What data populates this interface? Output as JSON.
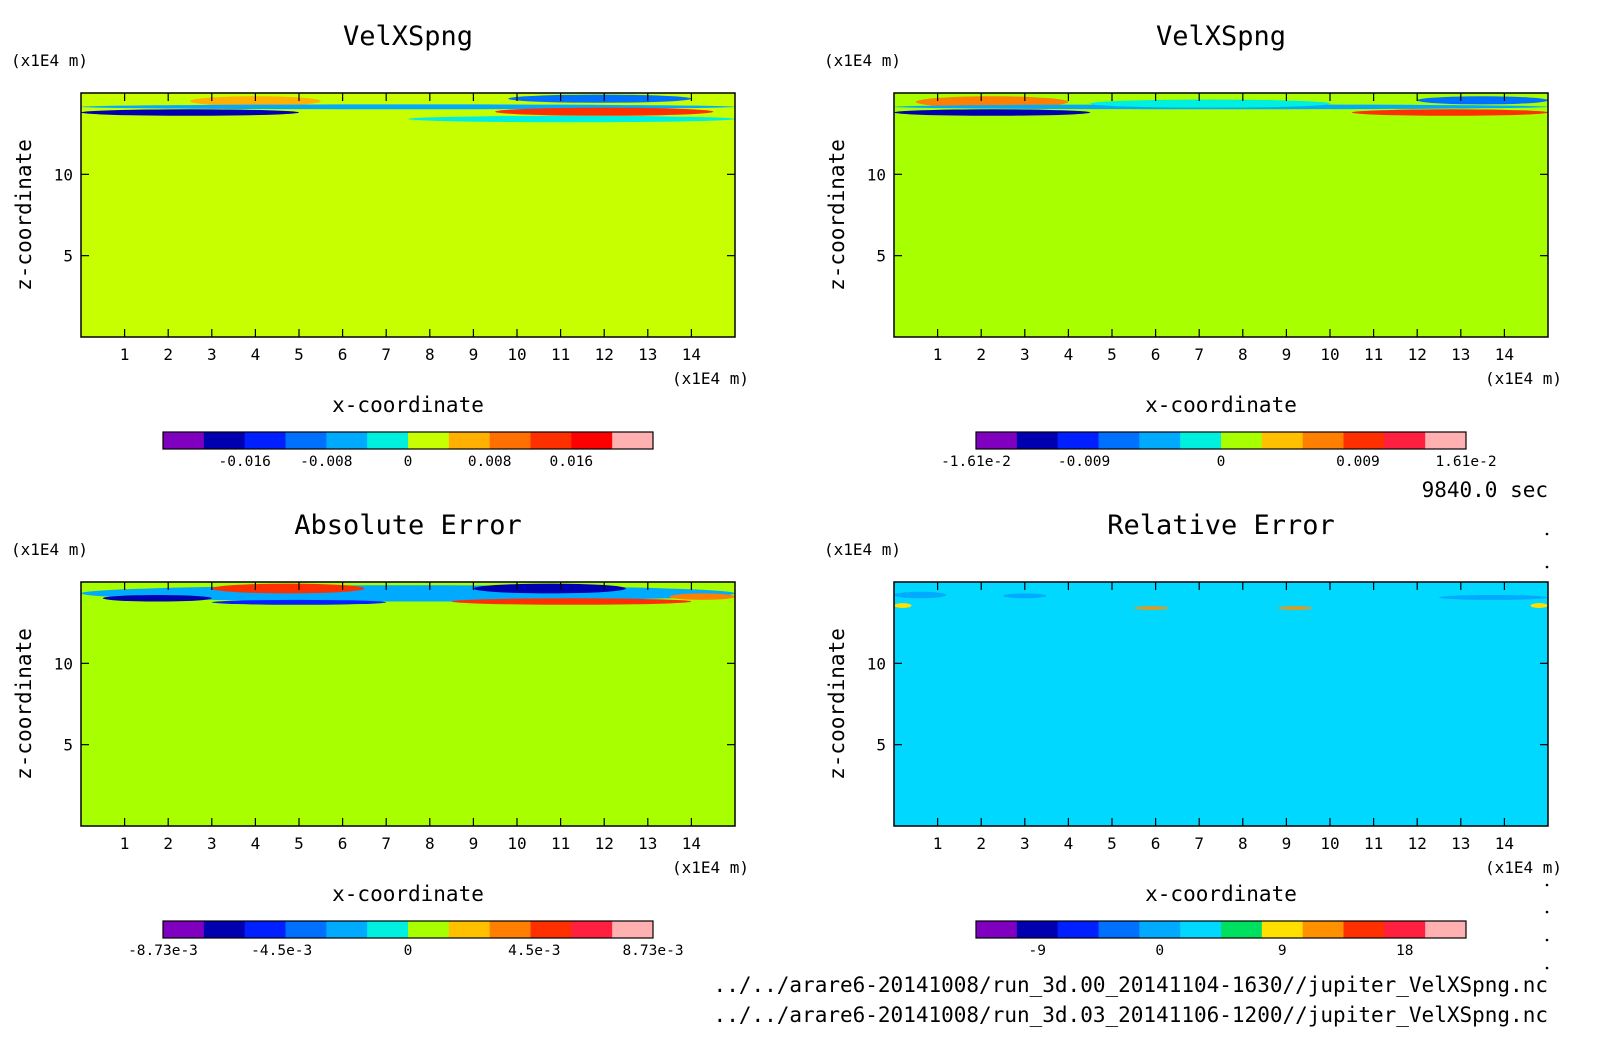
{
  "time_label": "9840.0 sec",
  "file_paths": [
    "../../arare6-20141008/run_3d.00_20141104-1630//jupiter_VelXSpng.nc",
    "../../arare6-20141008/run_3d.03_20141106-1200//jupiter_VelXSpng.nc"
  ],
  "colors": {
    "rainbow": [
      "#7f00bf",
      "#0000b0",
      "#0020ff",
      "#0070ff",
      "#00aaff",
      "#00e5d0",
      "#b0ff00",
      "#ffd700",
      "#ff9a00",
      "#ff5a00",
      "#ff2020",
      "#ff4060",
      "#ffb0b0"
    ],
    "frame": "#000000"
  },
  "chart_data": [
    {
      "type": "heatmap",
      "title": "VelXSpng",
      "xlabel": "x-coordinate",
      "ylabel": "z-coordinate",
      "x_unit": "(x1E4 m)",
      "y_unit": "(x1E4 m)",
      "xlim": [
        0,
        15
      ],
      "ylim": [
        0,
        15
      ],
      "x_ticks": [
        1,
        2,
        3,
        4,
        5,
        6,
        7,
        8,
        9,
        10,
        11,
        12,
        13,
        14
      ],
      "y_ticks": [
        5,
        10
      ],
      "background_value": 0,
      "background_color": "#c8ff00",
      "colorbar": {
        "colors": [
          "#7f00bf",
          "#0000b0",
          "#0020ff",
          "#0070ff",
          "#00aaff",
          "#00f0e0",
          "#c8ff00",
          "#ffb000",
          "#ff7000",
          "#ff3000",
          "#ff0000",
          "#ffb0b0"
        ],
        "labels": [
          "-0.016",
          "-0.008",
          "0",
          "0.008",
          "0.016"
        ],
        "label_values": [
          -0.016,
          -0.008,
          0,
          0.008,
          0.016
        ],
        "range": [
          -0.024,
          0.024
        ]
      },
      "features": [
        {
          "x": [
            2.5,
            5.5
          ],
          "z": [
            14.2,
            14.8
          ],
          "value": 0.008,
          "color": "#ffb000"
        },
        {
          "x": [
            0,
            5.0
          ],
          "z": [
            13.6,
            14.0
          ],
          "value": -0.016,
          "color": "#0000b0"
        },
        {
          "x": [
            0,
            15
          ],
          "z": [
            14.0,
            14.3
          ],
          "value": -0.004,
          "color": "#00aaff"
        },
        {
          "x": [
            9.5,
            14.5
          ],
          "z": [
            13.6,
            14.1
          ],
          "value": 0.016,
          "color": "#ff3000"
        },
        {
          "x": [
            9.8,
            14.0
          ],
          "z": [
            14.4,
            14.9
          ],
          "value": -0.008,
          "color": "#0070ff"
        },
        {
          "x": [
            7.5,
            15
          ],
          "z": [
            13.2,
            13.6
          ],
          "value": -0.004,
          "color": "#00f0e0"
        }
      ]
    },
    {
      "type": "heatmap",
      "title": "VelXSpng",
      "xlabel": "x-coordinate",
      "ylabel": "z-coordinate",
      "x_unit": "(x1E4 m)",
      "y_unit": "(x1E4 m)",
      "xlim": [
        0,
        15
      ],
      "ylim": [
        0,
        15
      ],
      "x_ticks": [
        1,
        2,
        3,
        4,
        5,
        6,
        7,
        8,
        9,
        10,
        11,
        12,
        13,
        14
      ],
      "y_ticks": [
        5,
        10
      ],
      "background_value": 0,
      "background_color": "#a8ff00",
      "colorbar": {
        "colors": [
          "#7f00bf",
          "#0000b0",
          "#0020ff",
          "#0070ff",
          "#00aaff",
          "#00f0e0",
          "#a8ff00",
          "#ffc000",
          "#ff8000",
          "#ff3000",
          "#ff2040",
          "#ffb0b0"
        ],
        "labels": [
          "-1.61e-2",
          "-0.009",
          "0",
          "0.009",
          "1.61e-2"
        ],
        "label_values": [
          -0.0161,
          -0.009,
          0,
          0.009,
          0.0161
        ],
        "range": [
          -0.0161,
          0.0161
        ]
      },
      "features": [
        {
          "x": [
            0.5,
            4.0
          ],
          "z": [
            14.1,
            14.8
          ],
          "value": 0.009,
          "color": "#ff8000"
        },
        {
          "x": [
            0,
            4.5
          ],
          "z": [
            13.6,
            14.0
          ],
          "value": -0.0161,
          "color": "#0000b0"
        },
        {
          "x": [
            0,
            15
          ],
          "z": [
            14.0,
            14.3
          ],
          "value": -0.004,
          "color": "#00aaff"
        },
        {
          "x": [
            10.5,
            15
          ],
          "z": [
            13.6,
            14.0
          ],
          "value": 0.0161,
          "color": "#ff3000"
        },
        {
          "x": [
            12.0,
            15
          ],
          "z": [
            14.3,
            14.8
          ],
          "value": -0.009,
          "color": "#0070ff"
        },
        {
          "x": [
            4.5,
            10.0
          ],
          "z": [
            14.1,
            14.6
          ],
          "value": -0.003,
          "color": "#00f0e0"
        }
      ]
    },
    {
      "type": "heatmap",
      "title": "Absolute Error",
      "xlabel": "x-coordinate",
      "ylabel": "z-coordinate",
      "x_unit": "(x1E4 m)",
      "y_unit": "(x1E4 m)",
      "xlim": [
        0,
        15
      ],
      "ylim": [
        0,
        15
      ],
      "x_ticks": [
        1,
        2,
        3,
        4,
        5,
        6,
        7,
        8,
        9,
        10,
        11,
        12,
        13,
        14
      ],
      "y_ticks": [
        5,
        10
      ],
      "background_value": 0,
      "background_color": "#a8ff00",
      "colorbar": {
        "colors": [
          "#7f00bf",
          "#0000b0",
          "#0020ff",
          "#0070ff",
          "#00aaff",
          "#00f0e0",
          "#a8ff00",
          "#ffc000",
          "#ff8000",
          "#ff3000",
          "#ff2040",
          "#ffb0b0"
        ],
        "labels": [
          "-8.73e-3",
          "-4.5e-3",
          "0",
          "4.5e-3",
          "8.73e-3"
        ],
        "label_values": [
          -0.00873,
          -0.0045,
          0,
          0.0045,
          0.00873
        ],
        "range": [
          -0.00873,
          0.00873
        ]
      },
      "features": [
        {
          "x": [
            0,
            15
          ],
          "z": [
            13.8,
            14.8
          ],
          "value": -0.002,
          "color": "#00aaff"
        },
        {
          "x": [
            0.5,
            3.0
          ],
          "z": [
            13.8,
            14.2
          ],
          "value": -0.0087,
          "color": "#0000b0"
        },
        {
          "x": [
            3.0,
            6.5
          ],
          "z": [
            14.3,
            14.9
          ],
          "value": 0.0087,
          "color": "#ff3000"
        },
        {
          "x": [
            3.0,
            7.0
          ],
          "z": [
            13.6,
            13.9
          ],
          "value": -0.006,
          "color": "#0020ff"
        },
        {
          "x": [
            9.0,
            12.5
          ],
          "z": [
            14.3,
            14.9
          ],
          "value": -0.0087,
          "color": "#0000b0"
        },
        {
          "x": [
            8.5,
            14.0
          ],
          "z": [
            13.6,
            14.0
          ],
          "value": 0.0087,
          "color": "#ff3000"
        },
        {
          "x": [
            13.5,
            15
          ],
          "z": [
            13.9,
            14.3
          ],
          "value": 0.0045,
          "color": "#ff8000"
        }
      ]
    },
    {
      "type": "heatmap",
      "title": "Relative Error",
      "xlabel": "x-coordinate",
      "ylabel": "z-coordinate",
      "x_unit": "(x1E4 m)",
      "y_unit": "(x1E4 m)",
      "xlim": [
        0,
        15
      ],
      "ylim": [
        0,
        15
      ],
      "x_ticks": [
        1,
        2,
        3,
        4,
        5,
        6,
        7,
        8,
        9,
        10,
        11,
        12,
        13,
        14
      ],
      "y_ticks": [
        5,
        10
      ],
      "background_value": 0,
      "background_color": "#00d8ff",
      "colorbar": {
        "colors": [
          "#7f00bf",
          "#0000b0",
          "#0020ff",
          "#0070ff",
          "#00aaff",
          "#00d8ff",
          "#00e060",
          "#ffe000",
          "#ff9000",
          "#ff3000",
          "#ff2040",
          "#ffb0b0"
        ],
        "labels": [
          "-9",
          "0",
          "9",
          "18"
        ],
        "label_values": [
          -9,
          0,
          9,
          18
        ],
        "range": [
          -13.5,
          22.5
        ]
      },
      "features": [
        {
          "x": [
            0,
            1.2
          ],
          "z": [
            14.0,
            14.4
          ],
          "value": -3,
          "color": "#00aaff"
        },
        {
          "x": [
            2.5,
            3.5
          ],
          "z": [
            14.0,
            14.3
          ],
          "value": -3,
          "color": "#00aaff"
        },
        {
          "x": [
            12.5,
            15
          ],
          "z": [
            13.9,
            14.2
          ],
          "value": -3,
          "color": "#00aaff"
        },
        {
          "x": [
            0,
            0.4
          ],
          "z": [
            13.4,
            13.7
          ],
          "value": 9,
          "color": "#ffe000"
        },
        {
          "x": [
            14.6,
            15
          ],
          "z": [
            13.4,
            13.7
          ],
          "value": 9,
          "color": "#ffe000"
        },
        {
          "x": [
            5.5,
            6.3
          ],
          "z": [
            13.3,
            13.5
          ],
          "value": 9,
          "color": "#ff9000"
        },
        {
          "x": [
            8.8,
            9.6
          ],
          "z": [
            13.3,
            13.5
          ],
          "value": 9,
          "color": "#ff9000"
        }
      ]
    }
  ]
}
